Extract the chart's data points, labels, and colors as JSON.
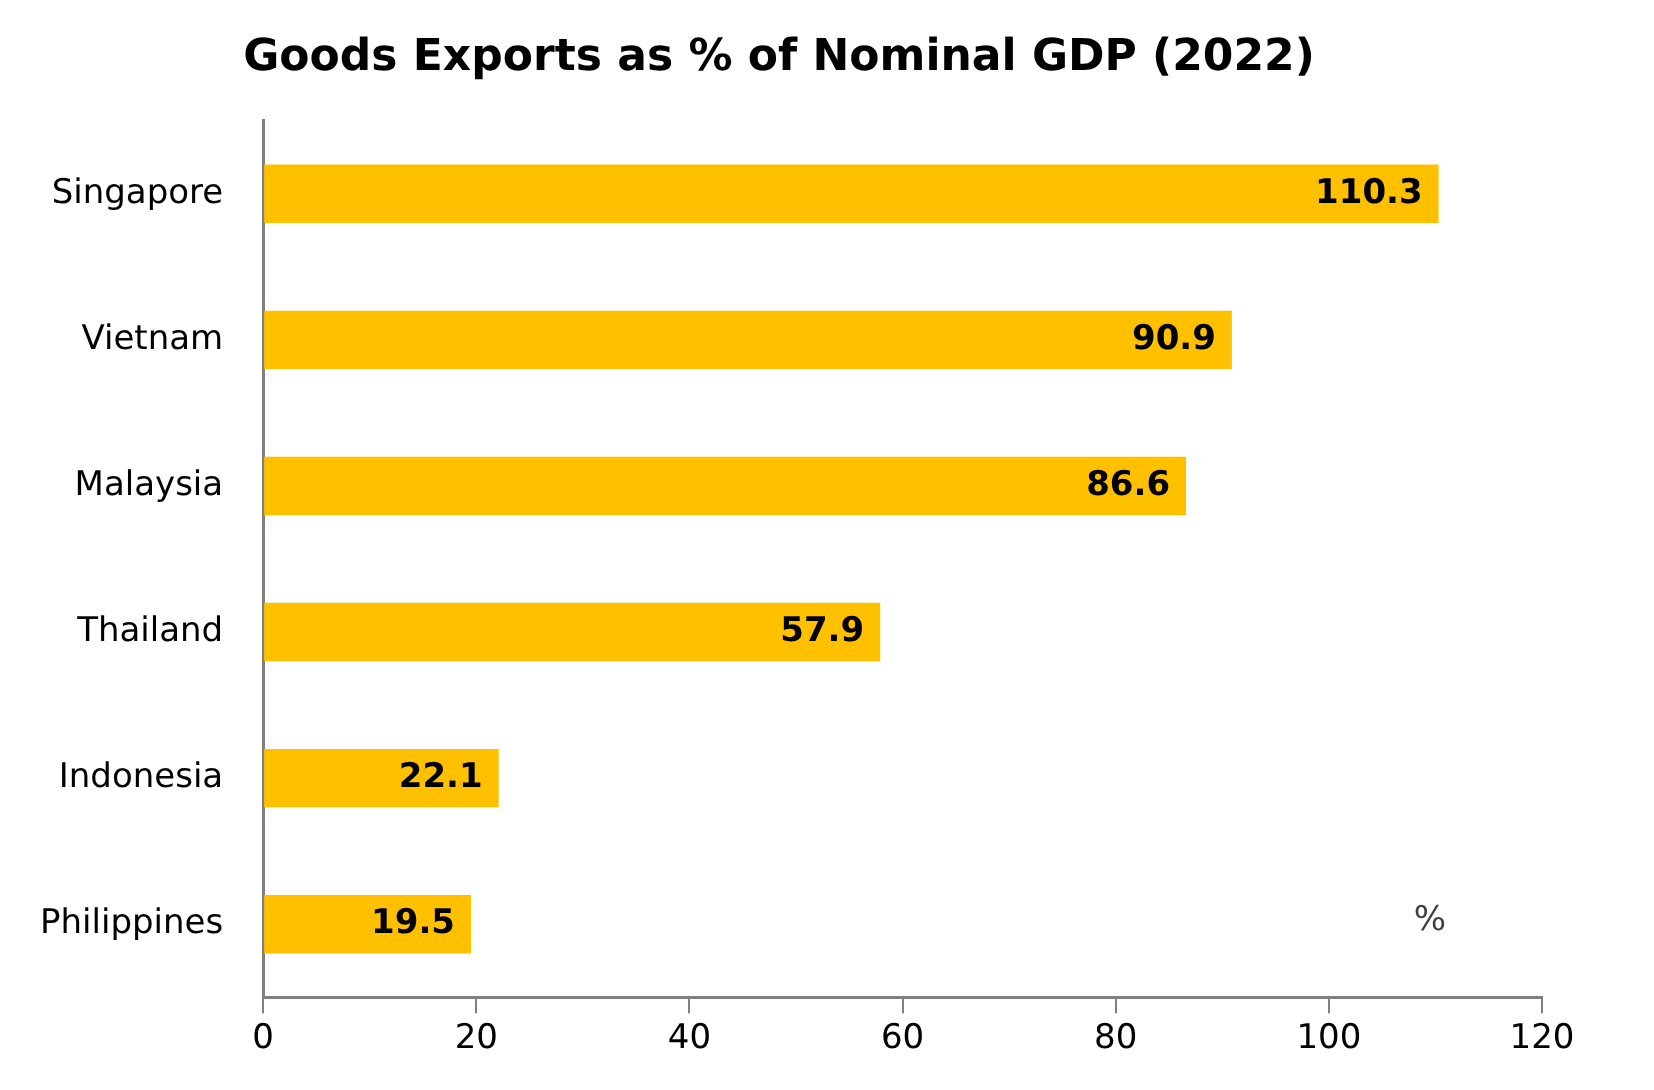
{
  "chart_data": {
    "type": "bar",
    "orientation": "horizontal",
    "title": "Goods Exports as % of Nominal GDP (2022)",
    "categories": [
      "Singapore",
      "Vietnam",
      "Malaysia",
      "Thailand",
      "Indonesia",
      "Philippines"
    ],
    "values": [
      110.3,
      90.9,
      86.6,
      57.9,
      22.1,
      19.5
    ],
    "color": "#ffc000",
    "xlim": [
      0,
      120
    ],
    "xticks": [
      0,
      20,
      40,
      60,
      80,
      100,
      120
    ],
    "grid": false,
    "legend": false,
    "data_labels": true,
    "annotations": [
      "%"
    ]
  }
}
